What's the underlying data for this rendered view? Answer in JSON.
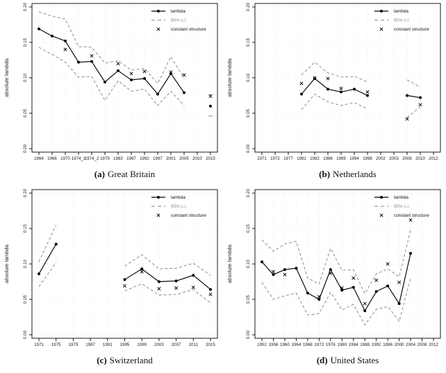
{
  "figure": {
    "background": "#ffffff",
    "ylabel": "absolute lambda",
    "colors": {
      "lambda": "#000000",
      "ci": "#7f7f7f",
      "marker_x": "#000000",
      "grid": "#dcdcdc",
      "axis": "#000000",
      "tick_text": "#1a1a1a",
      "legend_ci_text": "#8c8c8c"
    },
    "legend": [
      {
        "label": "lambda",
        "style": "solid-dot",
        "color": "#000000"
      },
      {
        "label": "95% c.i.",
        "style": "dashed",
        "color": "#8c8c8c"
      },
      {
        "label": "constant structure",
        "style": "x",
        "color": "#000000"
      }
    ]
  },
  "chart_data": [
    {
      "type": "line",
      "panel": "a",
      "caption_label": "(a)",
      "caption_text": "Great Britain",
      "ylabel": "absolute lambda",
      "ylim": [
        0,
        0.2
      ],
      "yticks": [
        0.0,
        0.05,
        0.1,
        0.15,
        0.2
      ],
      "grid": true,
      "legend_position": "top-right",
      "categories": [
        "1964",
        "1966",
        "1970",
        "1974_1",
        "1974_2",
        "1979",
        "1983",
        "1987",
        "1992",
        "1997",
        "2001",
        "2005",
        "2010",
        "2015"
      ],
      "series": [
        {
          "name": "lambda",
          "style": "solid-dot",
          "values": [
            0.169,
            0.159,
            0.152,
            0.122,
            0.123,
            0.094,
            0.11,
            0.097,
            0.099,
            0.077,
            0.106,
            0.079,
            null,
            0.06
          ]
        },
        {
          "name": "95% c.i. upper",
          "style": "dashed",
          "values": [
            0.193,
            0.187,
            0.183,
            0.144,
            0.143,
            0.121,
            0.124,
            0.111,
            0.113,
            0.092,
            0.13,
            0.099,
            null,
            0.076
          ]
        },
        {
          "name": "95% c.i. lower",
          "style": "dashed",
          "values": [
            0.143,
            0.133,
            0.122,
            0.101,
            0.102,
            0.068,
            0.096,
            0.081,
            0.084,
            0.061,
            0.081,
            0.061,
            null,
            0.046
          ]
        },
        {
          "name": "constant structure",
          "style": "x",
          "values": [
            null,
            null,
            0.14,
            null,
            0.131,
            null,
            0.12,
            0.106,
            0.109,
            null,
            0.108,
            0.104,
            null,
            0.074
          ]
        }
      ]
    },
    {
      "type": "line",
      "panel": "b",
      "caption_label": "(b)",
      "caption_text": "Netherlands",
      "ylabel": "absolute lambda",
      "ylim": [
        0,
        0.2
      ],
      "yticks": [
        0.0,
        0.05,
        0.1,
        0.15,
        0.2
      ],
      "grid": true,
      "legend_position": "top-right",
      "categories": [
        "1971",
        "1972",
        "1977",
        "1981",
        "1982",
        "1986",
        "1989",
        "1994",
        "1998",
        "2002",
        "2003",
        "2006",
        "2010",
        "2012"
      ],
      "series": [
        {
          "name": "lambda",
          "style": "solid-dot",
          "values": [
            null,
            null,
            null,
            0.077,
            0.099,
            0.084,
            0.08,
            0.084,
            0.075,
            null,
            null,
            0.075,
            0.072,
            null
          ]
        },
        {
          "name": "95% c.i. upper",
          "style": "dashed",
          "values": [
            null,
            null,
            null,
            0.104,
            0.122,
            0.107,
            0.101,
            0.102,
            0.094,
            null,
            null,
            0.097,
            0.087,
            null
          ]
        },
        {
          "name": "95% c.i. lower",
          "style": "dashed",
          "values": [
            null,
            null,
            null,
            0.055,
            0.077,
            0.066,
            0.061,
            0.065,
            0.056,
            null,
            null,
            0.044,
            0.059,
            null
          ]
        },
        {
          "name": "constant structure",
          "style": "x",
          "values": [
            null,
            null,
            null,
            0.092,
            0.1,
            0.099,
            0.085,
            null,
            0.08,
            null,
            null,
            0.042,
            0.062,
            null
          ]
        }
      ]
    },
    {
      "type": "line",
      "panel": "c",
      "caption_label": "(c)",
      "caption_text": "Switzerland",
      "ylabel": "absolute lambda",
      "ylim": [
        0,
        0.2
      ],
      "yticks": [
        0.0,
        0.05,
        0.1,
        0.15,
        0.2
      ],
      "grid": true,
      "legend_position": "top-right",
      "categories": [
        "1971",
        "1975",
        "1979",
        "1987",
        "1991",
        "1995",
        "1999",
        "2003",
        "2007",
        "2011",
        "2015"
      ],
      "series": [
        {
          "name": "lambda",
          "style": "solid-dot",
          "values": [
            0.086,
            0.128,
            null,
            null,
            null,
            0.078,
            0.093,
            0.075,
            0.076,
            0.084,
            0.064
          ]
        },
        {
          "name": "95% c.i. upper",
          "style": "dashed",
          "values": [
            0.103,
            0.155,
            null,
            null,
            null,
            0.097,
            0.113,
            0.093,
            0.094,
            0.101,
            0.084
          ]
        },
        {
          "name": "95% c.i. lower",
          "style": "dashed",
          "values": [
            0.068,
            0.102,
            null,
            null,
            null,
            0.062,
            0.072,
            0.056,
            0.057,
            0.064,
            0.045
          ]
        },
        {
          "name": "constant structure",
          "style": "x",
          "values": [
            null,
            null,
            null,
            null,
            null,
            0.069,
            0.089,
            0.065,
            0.066,
            0.067,
            0.057
          ]
        }
      ]
    },
    {
      "type": "line",
      "panel": "d",
      "caption_label": "(d)",
      "caption_text": "United States",
      "ylabel": "absolute lambda",
      "ylim": [
        0,
        0.2
      ],
      "yticks": [
        0.0,
        0.05,
        0.1,
        0.15,
        0.2
      ],
      "grid": true,
      "legend_position": "top-right",
      "categories": [
        "1952",
        "1956",
        "1960",
        "1964",
        "1968",
        "1972",
        "1976",
        "1980",
        "1984",
        "1988",
        "1992",
        "1996",
        "2000",
        "2004",
        "2008",
        "2012"
      ],
      "series": [
        {
          "name": "lambda",
          "style": "solid-dot",
          "values": [
            0.103,
            0.085,
            0.092,
            0.094,
            0.059,
            0.05,
            0.092,
            0.063,
            0.067,
            0.034,
            0.061,
            0.069,
            0.044,
            0.115,
            null,
            null
          ]
        },
        {
          "name": "95% c.i. upper",
          "style": "dashed",
          "values": [
            0.134,
            0.118,
            0.128,
            0.132,
            0.08,
            0.072,
            0.122,
            0.091,
            0.092,
            0.058,
            0.086,
            0.093,
            0.082,
            0.148,
            null,
            null
          ]
        },
        {
          "name": "95% c.i. lower",
          "style": "dashed",
          "values": [
            0.074,
            0.05,
            0.055,
            0.059,
            0.028,
            0.03,
            0.06,
            0.035,
            0.043,
            0.014,
            0.036,
            0.04,
            0.019,
            0.08,
            null,
            null
          ]
        },
        {
          "name": "constant structure",
          "style": "x",
          "values": [
            null,
            0.089,
            0.085,
            null,
            null,
            0.054,
            0.087,
            0.066,
            0.08,
            0.044,
            0.077,
            0.1,
            0.074,
            0.162,
            null,
            null
          ]
        }
      ]
    }
  ]
}
